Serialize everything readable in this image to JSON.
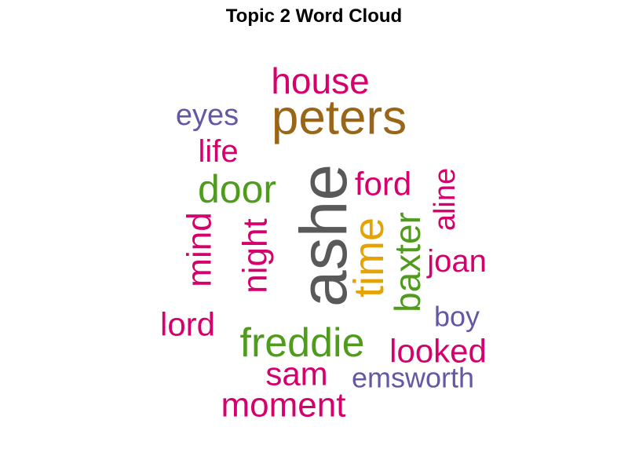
{
  "chart_data": {
    "type": "wordcloud",
    "title": "Topic 2 Word Cloud",
    "words": [
      {
        "text": "ashe",
        "color": "#595959"
      },
      {
        "text": "peters",
        "color": "#996619"
      },
      {
        "text": "time",
        "color": "#E5A200"
      },
      {
        "text": "house",
        "color": "#D5006B"
      },
      {
        "text": "door",
        "color": "#4F9B1C"
      },
      {
        "text": "freddie",
        "color": "#4F9B1C"
      },
      {
        "text": "baxter",
        "color": "#4F9B1C"
      },
      {
        "text": "eyes",
        "color": "#6457A6"
      },
      {
        "text": "life",
        "color": "#D5006B"
      },
      {
        "text": "ford",
        "color": "#D5006B"
      },
      {
        "text": "aline",
        "color": "#D5006B"
      },
      {
        "text": "mind",
        "color": "#D5006B"
      },
      {
        "text": "night",
        "color": "#D5006B"
      },
      {
        "text": "joan",
        "color": "#D5006B"
      },
      {
        "text": "lord",
        "color": "#D5006B"
      },
      {
        "text": "boy",
        "color": "#6457A6"
      },
      {
        "text": "looked",
        "color": "#D5006B"
      },
      {
        "text": "sam",
        "color": "#D5006B"
      },
      {
        "text": "emsworth",
        "color": "#6457A6"
      },
      {
        "text": "moment",
        "color": "#D5006B"
      }
    ]
  }
}
